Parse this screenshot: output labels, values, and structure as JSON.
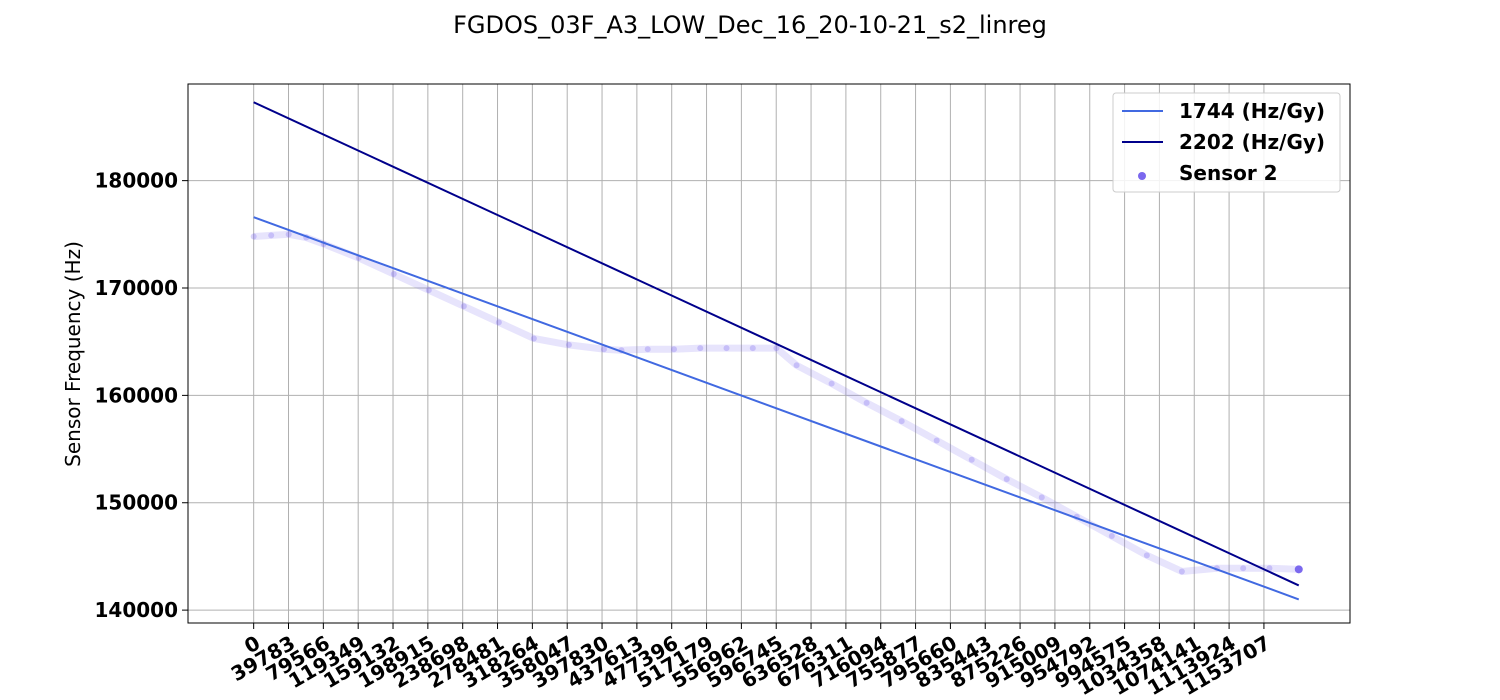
{
  "chart_data": {
    "type": "scatter",
    "title": "FGDOS_03F_A3_LOW_Dec_16_20-10-21_s2_linreg",
    "ylabel": "Sensor Frequency (Hz)",
    "xlabel": "",
    "xlim": [
      -75000,
      1252000
    ],
    "ylim": [
      138800,
      189000
    ],
    "grid": true,
    "legend_position": "upper right",
    "x_ticks": [
      0,
      39783,
      79566,
      119349,
      159132,
      198915,
      238698,
      278481,
      318264,
      358047,
      397830,
      437613,
      477396,
      517179,
      556962,
      596745,
      636528,
      676311,
      716094,
      755877,
      795660,
      835443,
      875226,
      915009,
      954792,
      994575,
      1034358,
      1074141,
      1113924,
      1153707
    ],
    "y_ticks": [
      140000,
      150000,
      160000,
      170000,
      180000
    ],
    "series": [
      {
        "name": "1744 (Hz/Gy)",
        "kind": "line",
        "color": "#4169e1",
        "x": [
          0,
          1193490
        ],
        "y": [
          176600,
          141000
        ]
      },
      {
        "name": "2202 (Hz/Gy)",
        "kind": "line",
        "color": "#00008b",
        "x": [
          0,
          1193490
        ],
        "y": [
          187300,
          142300
        ]
      },
      {
        "name": "Sensor 2",
        "kind": "scatter",
        "color": "#7b68ee",
        "x": [
          0,
          20000,
          40000,
          60000,
          80000,
          120000,
          160000,
          200000,
          240000,
          280000,
          320000,
          360000,
          400000,
          420000,
          450000,
          480000,
          510000,
          540000,
          570000,
          597000,
          620000,
          660000,
          700000,
          740000,
          780000,
          820000,
          860000,
          900000,
          940000,
          980000,
          1020000,
          1060000,
          1100000,
          1130000,
          1160000,
          1193490
        ],
        "y": [
          174800,
          174900,
          175000,
          174700,
          174100,
          172800,
          171300,
          169800,
          168300,
          166800,
          165300,
          164700,
          164300,
          164200,
          164300,
          164300,
          164400,
          164400,
          164400,
          164400,
          162800,
          161100,
          159300,
          157600,
          155800,
          154000,
          152200,
          150500,
          148700,
          146900,
          145100,
          143600,
          143900,
          143900,
          143900,
          143800
        ]
      }
    ]
  }
}
